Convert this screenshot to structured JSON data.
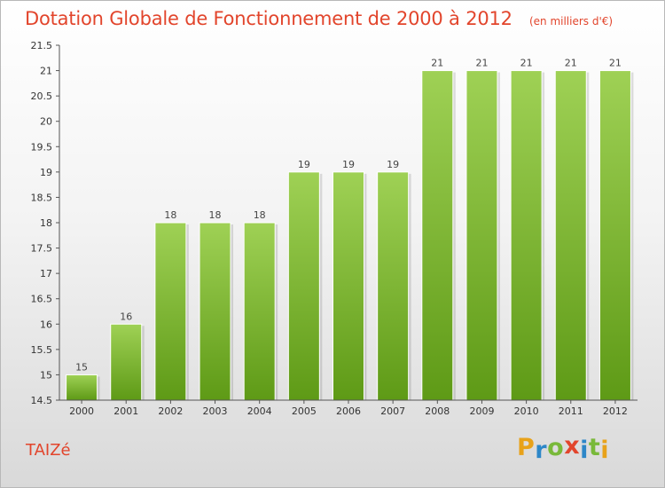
{
  "chart_data": {
    "type": "bar",
    "title": "Dotation Globale de Fonctionnement de 2000 à 2012",
    "subtitle": "(en milliers d'€)",
    "categories": [
      "2000",
      "2001",
      "2002",
      "2003",
      "2004",
      "2005",
      "2006",
      "2007",
      "2008",
      "2009",
      "2010",
      "2011",
      "2012"
    ],
    "values": [
      15,
      16,
      18,
      18,
      18,
      19,
      19,
      19,
      21,
      21,
      21,
      21,
      21
    ],
    "data_labels": [
      "15",
      "16",
      "18",
      "18",
      "18",
      "19",
      "19",
      "19",
      "21",
      "21",
      "21",
      "21",
      "21"
    ],
    "yticks": [
      "14.5",
      "15",
      "15.5",
      "16",
      "16.5",
      "17",
      "17.5",
      "18",
      "18.5",
      "19",
      "19.5",
      "20",
      "20.5",
      "21",
      "21.5"
    ],
    "ylim": [
      14.5,
      21.5
    ],
    "xlabel": "",
    "ylabel": "",
    "grid": false,
    "bar_color": "#7cb92d"
  },
  "footer": {
    "commune": "TAIZé",
    "logo_letters": [
      "P",
      "r",
      "o",
      "x",
      "i",
      "t",
      "i"
    ],
    "logo_colors": [
      "#e8a21a",
      "#2d87c8",
      "#79b93a",
      "#e2452c",
      "#2d87c8",
      "#79b93a",
      "#e8a21a"
    ]
  }
}
